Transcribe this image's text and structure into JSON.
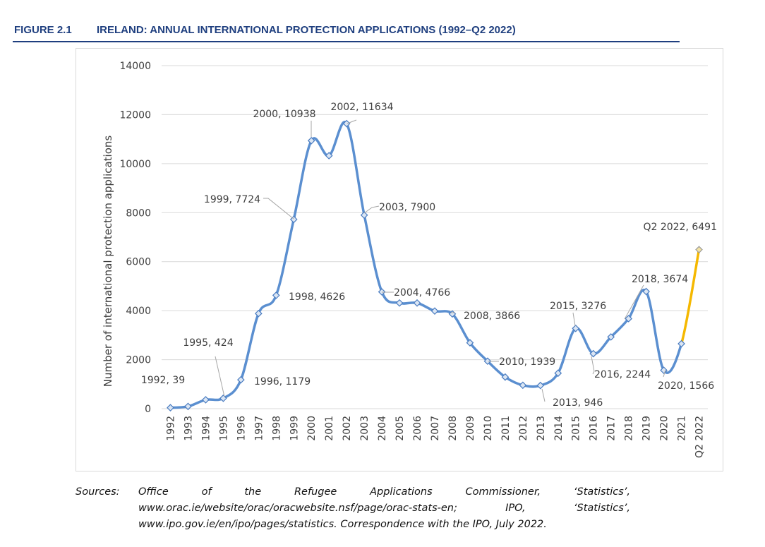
{
  "figure": {
    "number": "FIGURE 2.1",
    "title": "IRELAND: ANNUAL INTERNATIONAL PROTECTION APPLICATIONS (1992–Q2 2022)"
  },
  "chart_data": {
    "type": "line",
    "title": "",
    "xlabel": "",
    "ylabel": "Number of international protection applications",
    "ylim": [
      0,
      14000
    ],
    "yticks": [
      0,
      2000,
      4000,
      6000,
      8000,
      10000,
      12000,
      14000
    ],
    "grid": "horizontal",
    "categories": [
      "1992",
      "1993",
      "1994",
      "1995",
      "1996",
      "1997",
      "1998",
      "1999",
      "2000",
      "2001",
      "2002",
      "2003",
      "2004",
      "2005",
      "2006",
      "2007",
      "2008",
      "2009",
      "2010",
      "2011",
      "2012",
      "2013",
      "2014",
      "2015",
      "2016",
      "2017",
      "2018",
      "2019",
      "2020",
      "2021",
      "Q2 2022"
    ],
    "values": [
      39,
      91,
      362,
      424,
      1179,
      3883,
      4626,
      7724,
      10938,
      10325,
      11634,
      7900,
      4766,
      4314,
      4314,
      3985,
      3866,
      2689,
      1939,
      1290,
      956,
      946,
      1448,
      3276,
      2244,
      2926,
      3674,
      4781,
      1566,
      2649,
      6491
    ],
    "series_colors": {
      "main": "#5b8fd0",
      "marker": "#dbe6f4",
      "highlight": "#f5b800"
    },
    "annotations": [
      {
        "label": "1992, 39",
        "index": 0
      },
      {
        "label": "1995, 424",
        "index": 3
      },
      {
        "label": "1996, 1179",
        "index": 4
      },
      {
        "label": "1998, 4626",
        "index": 6
      },
      {
        "label": "1999, 7724",
        "index": 7
      },
      {
        "label": "2000, 10938",
        "index": 8
      },
      {
        "label": "2002, 11634",
        "index": 10
      },
      {
        "label": "2003, 7900",
        "index": 11
      },
      {
        "label": "2004, 4766",
        "index": 12
      },
      {
        "label": "2008, 3866",
        "index": 16
      },
      {
        "label": "2010, 1939",
        "index": 18
      },
      {
        "label": "2013, 946",
        "index": 21
      },
      {
        "label": "2015, 3276",
        "index": 23
      },
      {
        "label": "2016, 2244",
        "index": 24
      },
      {
        "label": "2018, 3674",
        "index": 26
      },
      {
        "label": "2020, 1566",
        "index": 28
      },
      {
        "label": "Q2 2022, 6491",
        "index": 30
      }
    ]
  },
  "sources": {
    "label": "Sources:",
    "line1": "Office of the Refugee Applications Commissioner, ‘Statistics’,",
    "line2": "www.orac.ie/website/orac/oracwebsite.nsf/page/orac-stats-en; IPO, ‘Statistics’,",
    "line3": "www.ipo.gov.ie/en/ipo/pages/statistics. Correspondence with the IPO, July 2022."
  }
}
